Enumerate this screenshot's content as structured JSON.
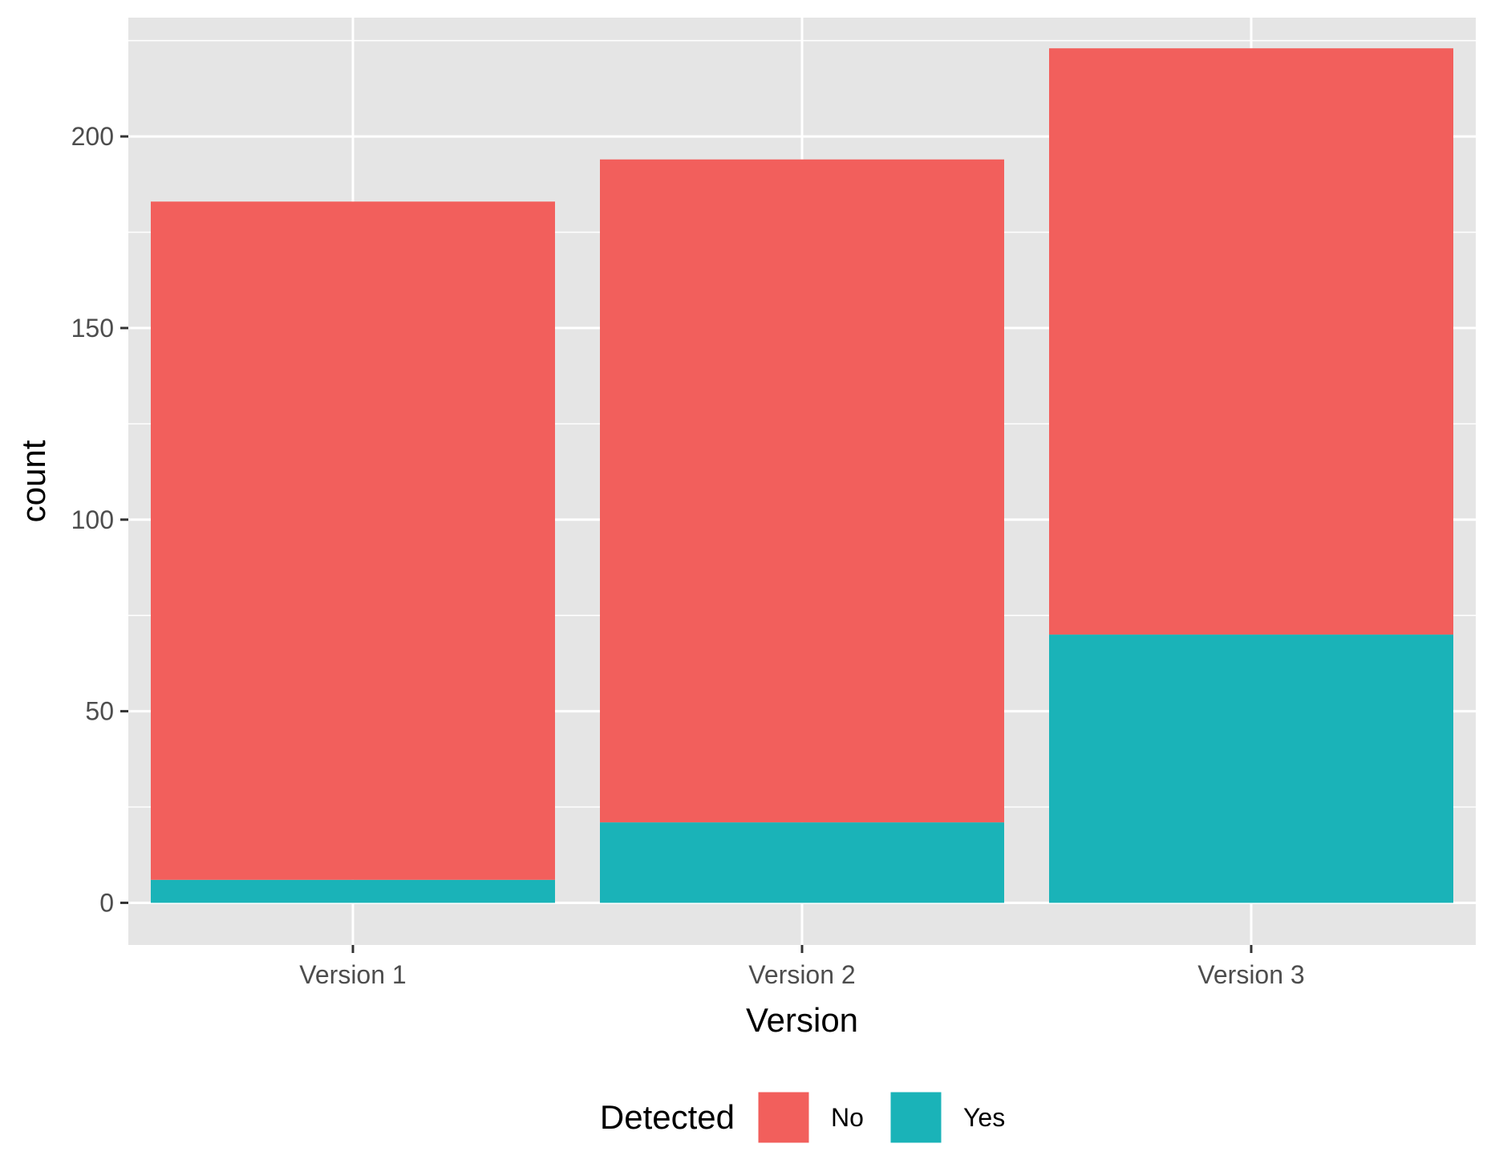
{
  "chart_data": {
    "type": "bar",
    "stacked": true,
    "categories": [
      "Version 1",
      "Version 2",
      "Version 3"
    ],
    "series": [
      {
        "name": "No",
        "values": [
          177,
          173,
          153
        ]
      },
      {
        "name": "Yes",
        "values": [
          6,
          21,
          70
        ]
      }
    ],
    "totals": [
      183,
      194,
      223
    ],
    "xlabel": "Version",
    "ylabel": "count",
    "ylim": [
      -11,
      231
    ],
    "yticks": [
      0,
      50,
      100,
      150,
      200
    ],
    "ytick_labels": [
      "0",
      "50",
      "100",
      "150",
      "200"
    ],
    "legend": {
      "title": "Detected",
      "placement": "bottom",
      "entries": [
        "No",
        "Yes"
      ]
    },
    "colors": {
      "No": "#F25F5C",
      "Yes": "#1AB3B8",
      "panel": "#E5E5E5",
      "grid": "#FFFFFF"
    },
    "grid": true
  }
}
